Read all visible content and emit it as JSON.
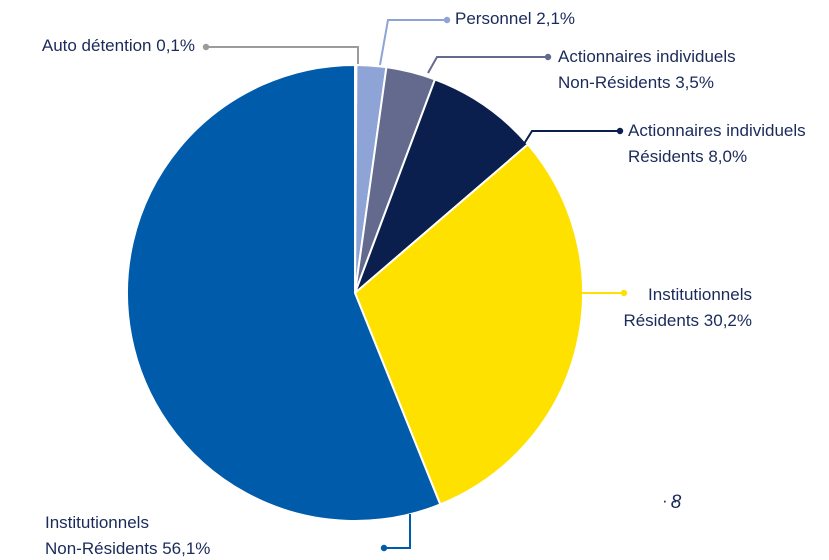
{
  "chart_data": {
    "type": "pie",
    "categories": [
      [
        "Auto détention"
      ],
      [
        "Personnel"
      ],
      [
        "Actionnaires individuels",
        "Non-Résidents"
      ],
      [
        "Actionnaires individuels",
        "Résidents"
      ],
      [
        "Institutionnels",
        "Résidents"
      ],
      [
        "Institutionnels",
        "Non-Résidents"
      ]
    ],
    "values": [
      0.1,
      2.1,
      3.5,
      8.0,
      30.2,
      56.1
    ],
    "value_labels": [
      "0,1%",
      "2,1%",
      "3,5%",
      "8,0%",
      "30,2%",
      "56,1%"
    ],
    "colors": [
      "#9b9b9b",
      "#8ea4d6",
      "#646a8e",
      "#0a1f4d",
      "#ffe100",
      "#005baa"
    ]
  },
  "page_number": "8"
}
